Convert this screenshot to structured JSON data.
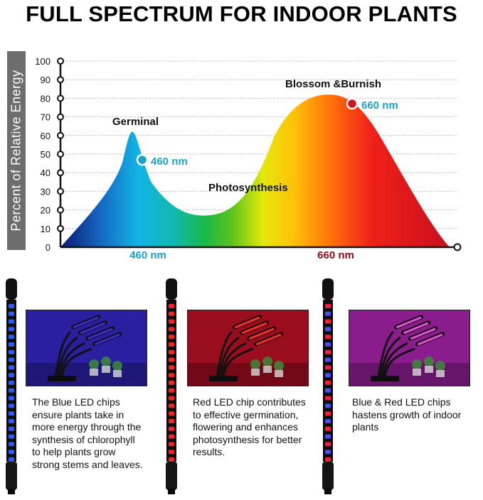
{
  "title": "FULL SPECTRUM FOR INDOOR PLANTS",
  "chart_data": {
    "type": "area",
    "ylabel": "Percent of Relative Energy",
    "yticks": [
      0,
      10,
      20,
      30,
      40,
      50,
      60,
      70,
      80,
      90,
      100
    ],
    "ylim": [
      0,
      100
    ],
    "xticks": [
      "460 nm",
      "660 nm"
    ],
    "annotations": {
      "germinal": "Germinal",
      "photosynthesis": "Photosynthesis",
      "blossom": "Blossom &Burnish",
      "peak_blue_label": "460 nm",
      "peak_red_label": "660 nm"
    },
    "peaks": [
      {
        "label": "460 nm",
        "value": 62
      },
      {
        "label": "660 nm",
        "value": 82
      }
    ],
    "trough_value": 17,
    "colors": {
      "tick_blue": "#1a9fd0",
      "tick_red": "#8b0d14",
      "annotation_blue": "#1ba3c8"
    }
  },
  "panels": [
    {
      "name": "blue",
      "caption_lines": [
        "The Blue LED chips",
        "ensure plants take in",
        "more energy through the",
        "synthesis of chlorophyll",
        "to help plants grow",
        "strong stems and leaves."
      ],
      "light_color": "#3b2cd8",
      "bg_color": "#2a1fa0"
    },
    {
      "name": "red",
      "caption_lines": [
        "Red LED chip contributes",
        "to effective germination,",
        "flowering and enhances",
        "photosynthesis for better",
        "results."
      ],
      "light_color": "#ff2a2a",
      "bg_color": "#9a0d1e"
    },
    {
      "name": "mixed",
      "caption_lines": [
        "Blue & Red LED chips",
        "hastens growth of indoor",
        "plants"
      ],
      "light_color": "#e84fd8",
      "bg_color": "#8a1c8e"
    }
  ]
}
